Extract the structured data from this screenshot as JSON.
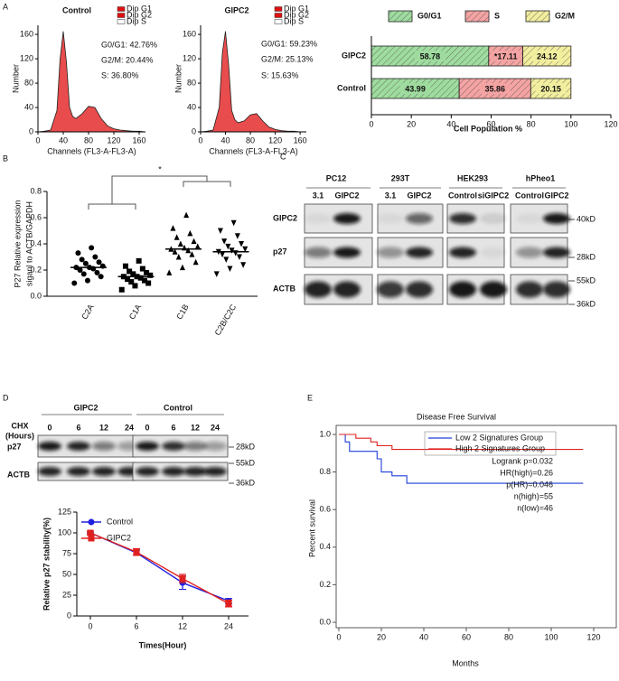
{
  "panel_labels": [
    "A",
    "B",
    "C",
    "D",
    "E"
  ],
  "chart_data": [
    {
      "type": "area",
      "title": "Control",
      "x": [
        0,
        10,
        20,
        30,
        35,
        40,
        45,
        50,
        55,
        60,
        70,
        80,
        90,
        100,
        110,
        120,
        130,
        140,
        150,
        160,
        170
      ],
      "series": [
        {
          "values": [
            0,
            1,
            3,
            35,
            120,
            165,
            115,
            40,
            25,
            22,
            30,
            42,
            40,
            22,
            10,
            5,
            3,
            2,
            1,
            1,
            0
          ],
          "color": "#222222",
          "fill": "#e01010"
        }
      ],
      "xlim": [
        0,
        170
      ],
      "ylim": [
        0,
        175
      ],
      "xticks": [
        0,
        40,
        80,
        120,
        160
      ],
      "yticks": [
        0,
        40,
        80,
        120,
        160
      ],
      "xlabel": "Channels  (FL3-A-FL3-A)",
      "ylabel": "Number",
      "legend": [
        {
          "name": "Dip G1",
          "color": "#e01010"
        },
        {
          "name": "Dip G2",
          "color": "#e01010"
        },
        {
          "name": "Dip S",
          "color": "#ffffff"
        }
      ],
      "annotations": [
        "G0/G1: 42.76%",
        "G2/M: 20.44%",
        "S: 36.80%"
      ]
    },
    {
      "type": "area",
      "title": "GIPC2",
      "x": [
        0,
        10,
        20,
        30,
        35,
        40,
        45,
        50,
        55,
        60,
        70,
        80,
        90,
        100,
        110,
        120,
        130,
        140,
        150,
        160,
        170
      ],
      "series": [
        {
          "values": [
            0,
            1,
            3,
            40,
            130,
            165,
            110,
            35,
            20,
            15,
            18,
            28,
            30,
            18,
            8,
            4,
            2,
            1,
            1,
            0,
            0
          ],
          "color": "#222222",
          "fill": "#e01010"
        }
      ],
      "xlim": [
        0,
        170
      ],
      "ylim": [
        0,
        175
      ],
      "xticks": [
        0,
        40,
        80,
        120,
        160
      ],
      "yticks": [
        0,
        40,
        80,
        120,
        160
      ],
      "xlabel": "Channels  (FL3-A-FL3-A)",
      "ylabel": "Number",
      "legend": [
        {
          "name": "Dip G1",
          "color": "#e01010"
        },
        {
          "name": "Dip G2",
          "color": "#e01010"
        },
        {
          "name": "Dip S",
          "color": "#ffffff"
        }
      ],
      "annotations": [
        "G0/G1: 59.23%",
        "G2/M: 25.13%",
        "S: 15.63%"
      ]
    },
    {
      "type": "hbar",
      "stacked": true,
      "categories": [
        "GIPC2",
        "Control"
      ],
      "series": [
        {
          "name": "G0/G1",
          "color": "#9fdc9f",
          "values": [
            58.78,
            43.99
          ]
        },
        {
          "name": "S",
          "color": "#f5a3a3",
          "values": [
            17.11,
            35.86
          ],
          "value_labels": [
            "*17.11",
            "35.86"
          ]
        },
        {
          "name": "G2/M",
          "color": "#f2ee9e",
          "values": [
            24.12,
            20.15
          ]
        }
      ],
      "xlim": [
        0,
        120
      ],
      "xticks": [
        0,
        20,
        40,
        60,
        80,
        100,
        120
      ],
      "xlabel": "Cell Population %"
    },
    {
      "type": "dot",
      "categories": [
        "C2A",
        "C1A",
        "C1B",
        "C2B/C2C"
      ],
      "points": [
        [
          0.1,
          0.12,
          0.15,
          0.17,
          0.18,
          0.2,
          0.21,
          0.22,
          0.22,
          0.23,
          0.25,
          0.26,
          0.28,
          0.3,
          0.33,
          0.37
        ],
        [
          0.05,
          0.08,
          0.1,
          0.11,
          0.12,
          0.13,
          0.14,
          0.15,
          0.15,
          0.16,
          0.17,
          0.18,
          0.19,
          0.21,
          0.23,
          0.27
        ],
        [
          0.18,
          0.22,
          0.26,
          0.3,
          0.32,
          0.34,
          0.35,
          0.36,
          0.37,
          0.38,
          0.4,
          0.42,
          0.45,
          0.48,
          0.52,
          0.62
        ],
        [
          0.17,
          0.21,
          0.24,
          0.28,
          0.3,
          0.32,
          0.33,
          0.34,
          0.35,
          0.36,
          0.38,
          0.4,
          0.42,
          0.46,
          0.5,
          0.56
        ]
      ],
      "means": [
        0.22,
        0.15,
        0.36,
        0.34
      ],
      "markers": [
        "circle",
        "square",
        "triangle",
        "triangle-down"
      ],
      "color": "#000000",
      "ylim": [
        0,
        0.8
      ],
      "yticks": [
        {
          "value": 0,
          "label": "0.0"
        },
        0.2,
        0.4,
        0.6,
        0.8
      ],
      "ylabel": [
        "P27 Relative expression",
        "siganl to ACTB/GAPDH"
      ],
      "annotations": [
        "*"
      ]
    },
    {
      "type": "line",
      "categories": [
        "0",
        "6",
        "12",
        "24"
      ],
      "series": [
        {
          "name": "Control",
          "color": "#1f1fe0",
          "marker": "circle",
          "values": [
            100,
            76,
            40,
            18
          ],
          "errors": [
            0,
            3,
            8,
            3
          ]
        },
        {
          "name": "GIPC2",
          "color": "#e02020",
          "marker": "square",
          "values": [
            100,
            77,
            45,
            15
          ],
          "errors": [
            2,
            4,
            5,
            4
          ]
        }
      ],
      "ylim": [
        0,
        125
      ],
      "yticks": [
        0,
        25,
        50,
        75,
        100,
        125
      ],
      "xlabel": "Times(Hour)",
      "ylabel": "Relative p27 stability(%)"
    },
    {
      "type": "step",
      "title": "Disease Free Survival",
      "series": [
        {
          "name": "Low 2 Signatures Group",
          "color": "#1f3fd8",
          "x": [
            0,
            3,
            3,
            5,
            5,
            18,
            18,
            20,
            20,
            25,
            25,
            32,
            32,
            115
          ],
          "values": [
            1,
            1,
            0.96,
            0.96,
            0.91,
            0.91,
            0.87,
            0.87,
            0.8,
            0.8,
            0.78,
            0.78,
            0.74,
            0.74
          ]
        },
        {
          "name": "High 2 Signatures Group",
          "color": "#e02020",
          "x": [
            0,
            8,
            8,
            15,
            15,
            18,
            18,
            25,
            25,
            115
          ],
          "values": [
            1,
            1,
            0.98,
            0.98,
            0.96,
            0.96,
            0.94,
            0.94,
            0.92,
            0.92
          ]
        }
      ],
      "xlim": [
        0,
        120
      ],
      "ylim": [
        0,
        1
      ],
      "xticks": [
        0,
        20,
        40,
        60,
        80,
        100,
        120
      ],
      "yticks": [
        {
          "value": 0,
          "label": "0.0"
        },
        0.2,
        0.4,
        0.6,
        0.8,
        {
          "value": 1,
          "label": "1.0"
        }
      ],
      "xlabel": "Months",
      "ylabel": "Percent survival",
      "annotations": [
        "Logrank p=0.032",
        "HR(high)=0.26",
        "p(HR)=0.046",
        "n(high)=55",
        "n(low)=46"
      ]
    }
  ],
  "blot_c": {
    "columns": [
      {
        "name": "PC12",
        "lanes": [
          "3.1",
          "GIPC2"
        ]
      },
      {
        "name": "293T",
        "lanes": [
          "3.1",
          "GIPC2"
        ]
      },
      {
        "name": "HEK293",
        "lanes": [
          "Control",
          "siGIPC2"
        ]
      },
      {
        "name": "hPheo1",
        "lanes": [
          "Control",
          "GIPC2"
        ]
      }
    ],
    "rows": [
      "GIPC2",
      "p27",
      "ACTB"
    ],
    "markers": [
      "40kD",
      "28kD",
      "55kD",
      "36kD"
    ]
  },
  "blot_d": {
    "groups": [
      "GIPC2",
      "Control"
    ],
    "treatment": [
      "CHX",
      "(Hours)"
    ],
    "times": [
      "0",
      "6",
      "12",
      "24"
    ],
    "rows": [
      "p27",
      "ACTB"
    ],
    "markers": [
      "28kD",
      "55kD",
      "36kD"
    ]
  }
}
